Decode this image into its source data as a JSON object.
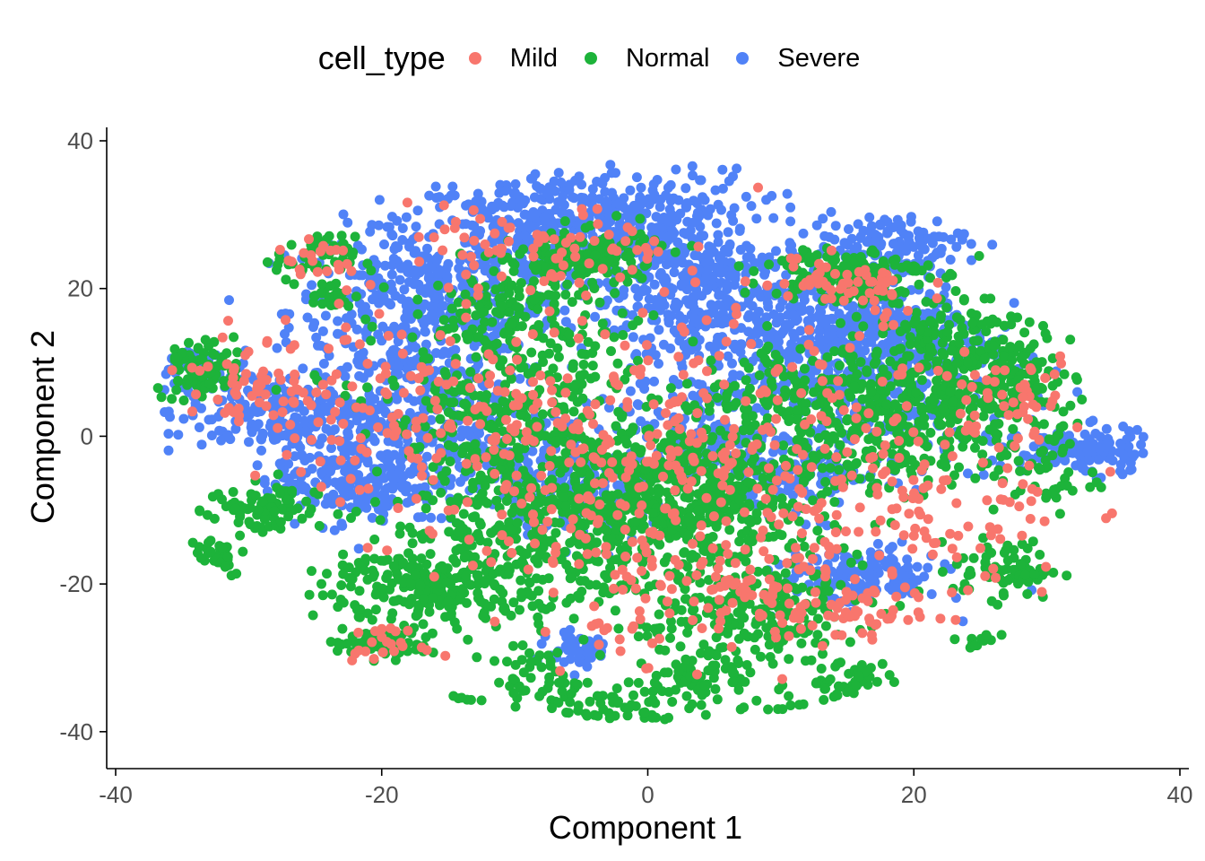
{
  "chart_data": {
    "type": "scatter",
    "xlabel": "Component 1",
    "ylabel": "Component 2",
    "xlim": [
      -40,
      40
    ],
    "ylim": [
      -45,
      40
    ],
    "xticks": [
      -40,
      -20,
      0,
      20,
      40
    ],
    "yticks": [
      -40,
      -20,
      0,
      20,
      40
    ],
    "grid": false,
    "legend": {
      "title": "cell_type",
      "placement": "top",
      "entries": [
        {
          "name": "Mild",
          "color": "#F8766D"
        },
        {
          "name": "Normal",
          "color": "#1DB33A"
        },
        {
          "name": "Severe",
          "color": "#5082F7"
        }
      ]
    },
    "series": [
      {
        "name": "Severe",
        "color": "#5082F7",
        "clusters": [
          {
            "cx": -17,
            "cy": 17,
            "sx": 5,
            "sy": 6,
            "n": 420
          },
          {
            "cx": -8,
            "cy": 28,
            "sx": 5,
            "sy": 4,
            "n": 320
          },
          {
            "cx": 0,
            "cy": 28,
            "sx": 4,
            "sy": 4,
            "n": 260
          },
          {
            "cx": 5,
            "cy": 18,
            "sx": 5,
            "sy": 5,
            "n": 360
          },
          {
            "cx": 12,
            "cy": 12,
            "sx": 5,
            "sy": 5,
            "n": 300
          },
          {
            "cx": 18,
            "cy": 14,
            "sx": 4,
            "sy": 4,
            "n": 240
          },
          {
            "cx": 18,
            "cy": 26,
            "sx": 3,
            "sy": 2,
            "n": 130
          },
          {
            "cx": -28,
            "cy": 3,
            "sx": 4,
            "sy": 3,
            "n": 220
          },
          {
            "cx": -22,
            "cy": -6,
            "sx": 3,
            "sy": 3,
            "n": 200
          },
          {
            "cx": -17,
            "cy": 3,
            "sx": 4,
            "sy": 4,
            "n": 180
          },
          {
            "cx": -11,
            "cy": -4,
            "sx": 4,
            "sy": 3,
            "n": 150
          },
          {
            "cx": -4,
            "cy": -8,
            "sx": 3,
            "sy": 3,
            "n": 140
          },
          {
            "cx": 4,
            "cy": 0,
            "sx": 4,
            "sy": 3,
            "n": 140
          },
          {
            "cx": 12,
            "cy": -5,
            "sx": 3,
            "sy": 3,
            "n": 110
          },
          {
            "cx": 16,
            "cy": -19,
            "sx": 3,
            "sy": 2,
            "n": 150
          },
          {
            "cx": -5,
            "cy": -29,
            "sx": 1.2,
            "sy": 1.2,
            "n": 60
          },
          {
            "cx": 33,
            "cy": -2,
            "sx": 2.5,
            "sy": 1.5,
            "n": 140
          },
          {
            "cx": -35,
            "cy": 9,
            "sx": 1.5,
            "sy": 1.5,
            "n": 40
          },
          {
            "cx": 22,
            "cy": 4,
            "sx": 4,
            "sy": 4,
            "n": 100
          }
        ]
      },
      {
        "name": "Normal",
        "color": "#1DB33A",
        "clusters": [
          {
            "cx": -5,
            "cy": -12,
            "sx": 7,
            "sy": 6,
            "n": 520
          },
          {
            "cx": 4,
            "cy": -7,
            "sx": 6,
            "sy": 5,
            "n": 380
          },
          {
            "cx": -10,
            "cy": 3,
            "sx": 5,
            "sy": 6,
            "n": 300
          },
          {
            "cx": 20,
            "cy": 3,
            "sx": 5,
            "sy": 5,
            "n": 340
          },
          {
            "cx": 26,
            "cy": 8,
            "sx": 3,
            "sy": 3,
            "n": 160
          },
          {
            "cx": 15,
            "cy": 22,
            "sx": 3,
            "sy": 2,
            "n": 160
          },
          {
            "cx": -16,
            "cy": -20,
            "sx": 4,
            "sy": 3,
            "n": 240
          },
          {
            "cx": -5,
            "cy": 24,
            "sx": 3,
            "sy": 2,
            "n": 140
          },
          {
            "cx": -10,
            "cy": 17,
            "sx": 4,
            "sy": 3,
            "n": 130
          },
          {
            "cx": 8,
            "cy": -24,
            "sx": 4,
            "sy": 3,
            "n": 180
          },
          {
            "cx": -2,
            "cy": -38,
            "sx": 3,
            "sy": 2,
            "n": 100
          },
          {
            "cx": 4,
            "cy": -32,
            "sx": 2,
            "sy": 2,
            "n": 70
          },
          {
            "cx": 10,
            "cy": -38,
            "sx": 1.2,
            "sy": 1.5,
            "n": 50
          },
          {
            "cx": 16,
            "cy": -34,
            "sx": 2,
            "sy": 1.5,
            "n": 70
          },
          {
            "cx": -20,
            "cy": -28,
            "sx": 2,
            "sy": 1,
            "n": 70
          },
          {
            "cx": -34,
            "cy": 9,
            "sx": 2,
            "sy": 2,
            "n": 100
          },
          {
            "cx": -29,
            "cy": -10,
            "sx": 2,
            "sy": 2,
            "n": 80
          },
          {
            "cx": -25,
            "cy": 24,
            "sx": 1.5,
            "sy": 1.5,
            "n": 50
          },
          {
            "cx": -24,
            "cy": 19,
            "sx": 1,
            "sy": 1,
            "n": 25
          },
          {
            "cx": 27,
            "cy": -18,
            "sx": 2,
            "sy": 2,
            "n": 70
          },
          {
            "cx": 27,
            "cy": -28,
            "sx": 1.5,
            "sy": 1,
            "n": 40
          },
          {
            "cx": -33,
            "cy": -16,
            "sx": 1.5,
            "sy": 1.5,
            "n": 40
          },
          {
            "cx": 11,
            "cy": 5,
            "sx": 4,
            "sy": 4,
            "n": 140
          },
          {
            "cx": 22,
            "cy": 14,
            "sx": 3,
            "sy": 3,
            "n": 90
          },
          {
            "cx": -8,
            "cy": -33,
            "sx": 2,
            "sy": 2,
            "n": 50
          },
          {
            "cx": -14,
            "cy": -36,
            "sx": 0.8,
            "sy": 0.8,
            "n": 12
          },
          {
            "cx": 30,
            "cy": -5,
            "sx": 2,
            "sy": 3,
            "n": 40
          }
        ]
      },
      {
        "name": "Mild",
        "color": "#F8766D",
        "clusters": [
          {
            "cx": -5,
            "cy": -8,
            "sx": 8,
            "sy": 8,
            "n": 200
          },
          {
            "cx": 5,
            "cy": 5,
            "sx": 9,
            "sy": 8,
            "n": 180
          },
          {
            "cx": -20,
            "cy": 5,
            "sx": 6,
            "sy": 6,
            "n": 110
          },
          {
            "cx": 20,
            "cy": -10,
            "sx": 6,
            "sy": 6,
            "n": 110
          },
          {
            "cx": -8,
            "cy": 25,
            "sx": 5,
            "sy": 3,
            "n": 80
          },
          {
            "cx": 8,
            "cy": -22,
            "sx": 6,
            "sy": 4,
            "n": 110
          },
          {
            "cx": -25,
            "cy": 24,
            "sx": 1.5,
            "sy": 1.5,
            "n": 20
          },
          {
            "cx": 15,
            "cy": 20,
            "sx": 3,
            "sy": 2,
            "n": 50
          },
          {
            "cx": 27,
            "cy": 5,
            "sx": 3,
            "sy": 3,
            "n": 50
          },
          {
            "cx": -30,
            "cy": 8,
            "sx": 3,
            "sy": 3,
            "n": 50
          },
          {
            "cx": -20,
            "cy": -28,
            "sx": 1.5,
            "sy": 1,
            "n": 22
          },
          {
            "cx": 17,
            "cy": -24,
            "sx": 3,
            "sy": 1.5,
            "n": 40
          }
        ]
      }
    ]
  }
}
